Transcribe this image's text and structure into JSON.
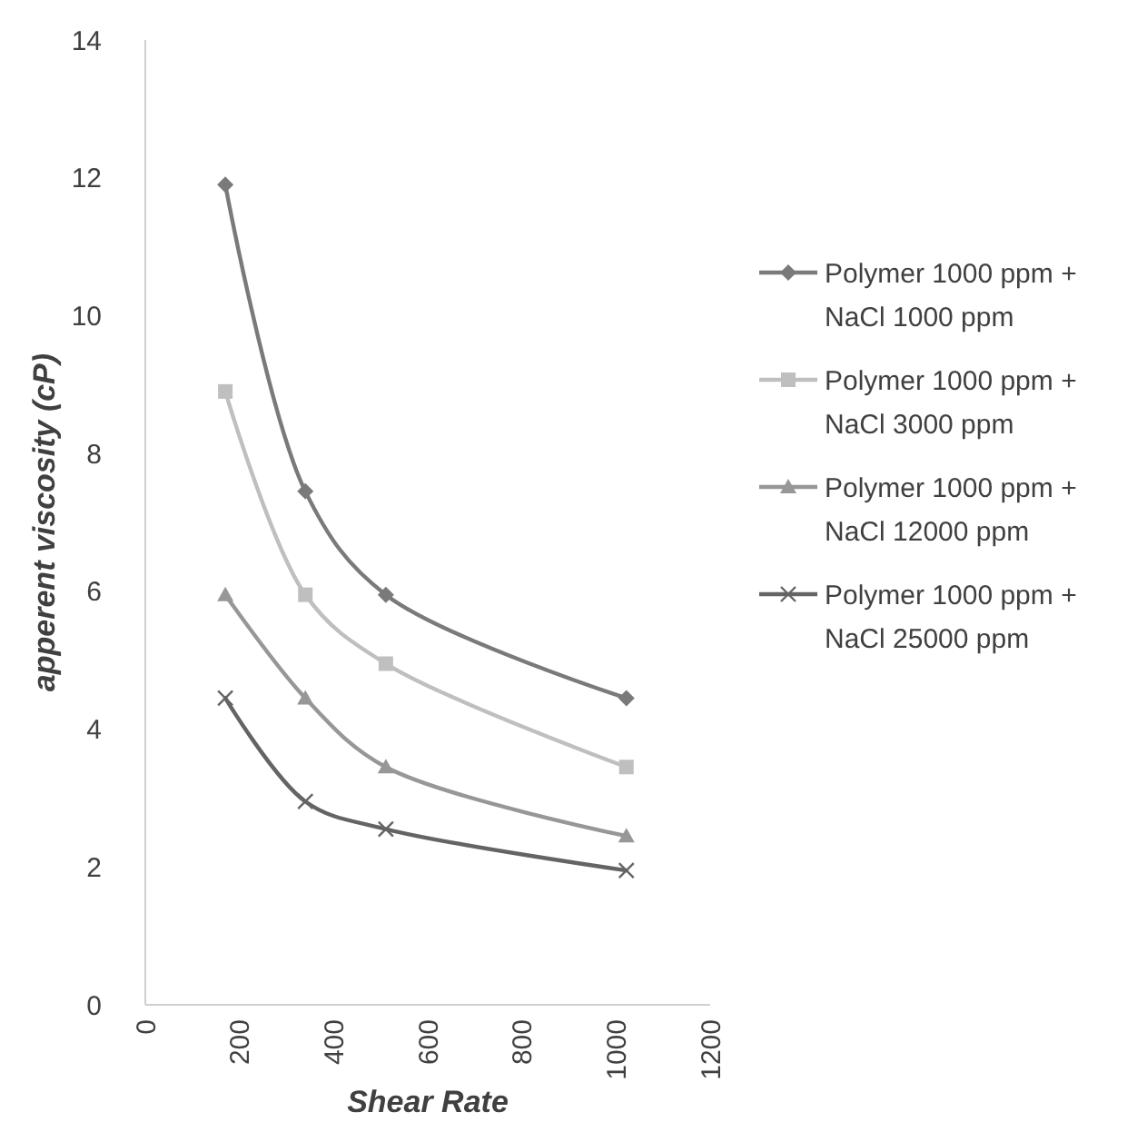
{
  "chart_data": {
    "type": "line",
    "xlabel": "Shear Rate",
    "ylabel": "apperent viscosity (cP)",
    "x": [
      170,
      340,
      511,
      1022
    ],
    "xlim": [
      0,
      1200
    ],
    "xticks": [
      0,
      200,
      400,
      600,
      800,
      1000,
      1200
    ],
    "ylim": [
      0,
      14
    ],
    "yticks": [
      0,
      2,
      4,
      6,
      8,
      10,
      12,
      14
    ],
    "grid": false,
    "legend": "right",
    "series": [
      {
        "name": "Polymer 1000 ppm + NaCl 1000 ppm",
        "color": "#7a7a7a",
        "marker": "diamond",
        "values": [
          11.9,
          7.45,
          5.95,
          4.45
        ]
      },
      {
        "name": "Polymer 1000 ppm + NaCl 3000 ppm",
        "color": "#bfbfbf",
        "marker": "square",
        "values": [
          8.9,
          5.95,
          4.95,
          3.45
        ]
      },
      {
        "name": "Polymer 1000 ppm + NaCl 12000 ppm",
        "color": "#979797",
        "marker": "triangle",
        "values": [
          5.95,
          4.45,
          3.45,
          2.45
        ]
      },
      {
        "name": "Polymer 1000 ppm + NaCl 25000 ppm",
        "color": "#646464",
        "marker": "cross",
        "values": [
          4.45,
          2.95,
          2.55,
          1.95
        ]
      }
    ]
  }
}
